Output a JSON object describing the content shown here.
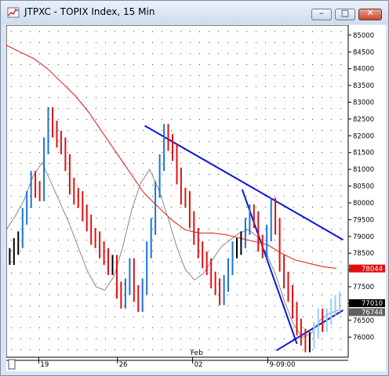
{
  "window": {
    "title": "JTPXC - TOPIX Index, 15 Min",
    "minimize_glyph": "–",
    "maximize_glyph": "□",
    "close_glyph": "✕"
  },
  "price_axis": {
    "ticks": [
      "85000",
      "84500",
      "84000",
      "83500",
      "83000",
      "82500",
      "82000",
      "81500",
      "81000",
      "80500",
      "80000",
      "79500",
      "79000",
      "78500",
      "78000",
      "77500",
      "77000",
      "76500",
      "76000"
    ],
    "tags": [
      {
        "label": "78044",
        "color": "#e01010",
        "value": 78044
      },
      {
        "label": "77010",
        "color": "#000000",
        "value": 77010
      },
      {
        "label": "76744",
        "color": "#606060",
        "value": 76744
      }
    ]
  },
  "time_axis": {
    "month_label": "Feb",
    "ticks": [
      "19",
      "26",
      "02",
      "9-09:00"
    ]
  },
  "colors": {
    "trendline": "#0b18d8",
    "moving_avg": "#e01010",
    "short_avg": "#888888",
    "bull": "#000000",
    "bear": "#e01010",
    "strong_up": "#1a73d8",
    "light_up": "#99ccf5"
  },
  "chart_data": {
    "type": "line",
    "title": "JTPXC - TOPIX Index, 15 Min",
    "ylim": [
      75400,
      85300
    ],
    "grid": true,
    "series": [
      {
        "values": [
          78400,
          78700,
          78900,
          79600,
          80100,
          80700,
          80400,
          80300,
          81700,
          82600,
          82200,
          81900,
          81700,
          81200,
          80500,
          80200,
          80100,
          79700,
          79400,
          79000,
          78900,
          78600,
          78400,
          78100,
          78200,
          77400,
          77100,
          77500,
          78100,
          77300,
          77000,
          77500,
          78600,
          79300,
          80400,
          81200,
          82100,
          81800,
          81500,
          80800,
          80200,
          80100,
          79500,
          79000,
          78600,
          78300,
          78100,
          77700,
          77500,
          77200,
          77600,
          78100,
          78600,
          78700,
          78900,
          79300,
          79700,
          79500,
          78800,
          78600,
          79100,
          79900,
          79300,
          78200,
          77700,
          77300,
          76800,
          76300,
          76000,
          75800,
          75900,
          76200,
          76600,
          76400,
          76600,
          76900,
          77000,
          77100
        ]
      },
      {
        "name": "long-avg",
        "values": [
          84700,
          84500,
          84300,
          84000,
          83600,
          83200,
          82700,
          82100,
          81500,
          80900,
          80300,
          79900,
          79500,
          79200,
          79100,
          79100,
          79050,
          78950,
          78850,
          78750,
          78500,
          78300,
          78200,
          78100,
          78050
        ]
      },
      {
        "name": "short-avg",
        "values": [
          79200,
          79600,
          80100,
          80800,
          81200,
          80600,
          80000,
          79400,
          78700,
          78000,
          77500,
          77400,
          77800,
          78700,
          79800,
          80600,
          81000,
          80400,
          79600,
          78700,
          78000,
          77700,
          77900,
          78300,
          78700,
          78900,
          79100,
          79200,
          79000,
          78500,
          77900,
          77100,
          76400,
          76000,
          76100,
          76500,
          76700,
          76800
        ]
      }
    ]
  },
  "trendlines": [
    {
      "x0": 0.405,
      "y0": 82300,
      "x1": 0.985,
      "y1": 78900
    },
    {
      "x0": 0.69,
      "y0": 80400,
      "x1": 0.85,
      "y1": 75800
    },
    {
      "x0": 0.79,
      "y0": 75600,
      "x1": 0.985,
      "y1": 76800
    }
  ]
}
